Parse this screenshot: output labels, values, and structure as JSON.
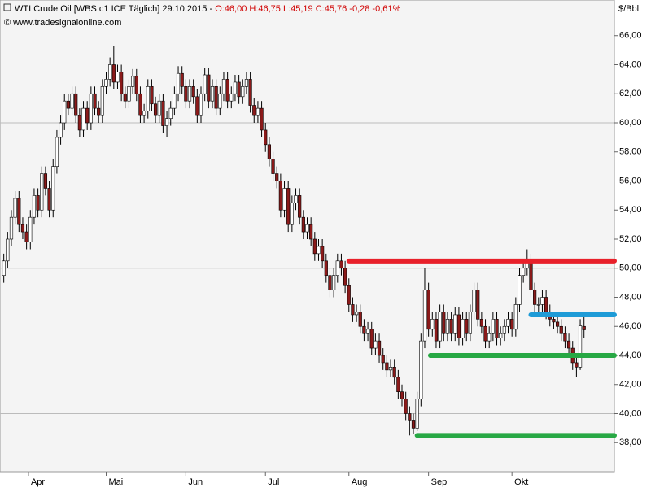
{
  "chart_data": {
    "type": "candlestick",
    "title": "WTI Crude Oil [WBS c1 ICE  Täglich] 29.10.2015 -",
    "title_quote": "O:46,00 H:46,75 L:45,19 C:45,76 -0,28 -0,61%",
    "subtitle": "© www.tradesignalonline.com",
    "y_label": "$/Bbl",
    "up_color": "#ffffff",
    "down_color": "#8b1a1a",
    "xlim": [
      -1,
      161
    ],
    "xticks": [
      {
        "value": 6.5,
        "label": "Apr"
      },
      {
        "value": 27,
        "label": "Mai"
      },
      {
        "value": 48,
        "label": "Jun"
      },
      {
        "value": 69,
        "label": "Jul"
      },
      {
        "value": 91,
        "label": "Aug"
      },
      {
        "value": 112,
        "label": "Sep"
      },
      {
        "value": 134,
        "label": "Okt"
      }
    ],
    "ylim": [
      36,
      68
    ],
    "yticks": [
      {
        "value": 38,
        "label": "38,00"
      },
      {
        "value": 40,
        "label": "40,00"
      },
      {
        "value": 42,
        "label": "42,00"
      },
      {
        "value": 44,
        "label": "44,00"
      },
      {
        "value": 46,
        "label": "46,00"
      },
      {
        "value": 48,
        "label": "48,00"
      },
      {
        "value": 50,
        "label": "50,00"
      },
      {
        "value": 52,
        "label": "52,00"
      },
      {
        "value": 54,
        "label": "54,00"
      },
      {
        "value": 56,
        "label": "56,00"
      },
      {
        "value": 58,
        "label": "58,00"
      },
      {
        "value": 60,
        "label": "60,00"
      },
      {
        "value": 62,
        "label": "62,00"
      },
      {
        "value": 64,
        "label": "64,00"
      },
      {
        "value": 66,
        "label": "66,00"
      }
    ],
    "grid": [
      40,
      50,
      60
    ],
    "levels": [
      {
        "value": 50.5,
        "from": 91,
        "to": 161,
        "color": "#e8202a"
      },
      {
        "value": 46.8,
        "from": 139,
        "to": 161,
        "color": "#1e9bd7"
      },
      {
        "value": 44,
        "from": 112.5,
        "to": 161,
        "color": "#27a844"
      },
      {
        "value": 38.5,
        "from": 109,
        "to": 161,
        "color": "#27a844"
      }
    ],
    "open": [
      49.5,
      50.5,
      52,
      53.5,
      54.8,
      53,
      52.5,
      51.8,
      53.5,
      55,
      54,
      56.5,
      55.5,
      54,
      57,
      59,
      60,
      61.5,
      61,
      62,
      60.5,
      59.5,
      61,
      60,
      62,
      61,
      60.5,
      62.5,
      63,
      64,
      62.8,
      63.5,
      62,
      61.5,
      62.5,
      63.2,
      62,
      60.5,
      60.8,
      62.5,
      61.3,
      60.5,
      61.5,
      59.8,
      60.3,
      61,
      62,
      63.4,
      62.5,
      61.5,
      62.5,
      61.8,
      60.5,
      62,
      63.3,
      61.5,
      62.5,
      61,
      62,
      63,
      61.5,
      62,
      62.8,
      61.8,
      62.5,
      63,
      61.2,
      60.5,
      61,
      59.5,
      58.5,
      57.5,
      56.5,
      56,
      54,
      55.5,
      53,
      54.5,
      55,
      53.5,
      52.5,
      53,
      52,
      51,
      51.5,
      50.5,
      49.5,
      48.5,
      49.5,
      50.5,
      50,
      48.8,
      47.5,
      46.8,
      47,
      46,
      45.5,
      45.8,
      44.5,
      45,
      44,
      43.5,
      43,
      43.2,
      42.5,
      41.5,
      41,
      40,
      39.5,
      39,
      41,
      45,
      48.5,
      45.8,
      46.5,
      45,
      47,
      45.5,
      46.5,
      45.5,
      46.8,
      45.2,
      46.5,
      45.5,
      47,
      48.5,
      46.5,
      46,
      45,
      45.5,
      46.5,
      45.2,
      45.5,
      46,
      46.5,
      45.8,
      47.5,
      49.5,
      50,
      50.5,
      48.5,
      47.5,
      47.5,
      48,
      47,
      46.5,
      46.3,
      46,
      45.5,
      45,
      44.5,
      43.5,
      43.2,
      46.0
    ],
    "high": [
      51,
      52.5,
      54,
      55.3,
      55.3,
      53.5,
      53,
      54,
      55.5,
      55.5,
      57,
      57,
      56,
      57.5,
      59.5,
      60.5,
      62,
      62,
      62.5,
      62.5,
      61,
      61.5,
      61.5,
      62.5,
      62.5,
      61.5,
      63,
      63.5,
      64.5,
      65.3,
      64,
      64,
      62.5,
      63,
      63.7,
      63.7,
      62.5,
      61.3,
      63,
      63,
      61.8,
      62,
      62,
      60.8,
      61.5,
      62.5,
      63.9,
      63.9,
      63,
      63,
      63,
      62.3,
      62.5,
      63.8,
      63.8,
      63,
      63,
      62.5,
      63.5,
      63.5,
      62.5,
      63.3,
      63.3,
      63,
      63.5,
      63.5,
      61.7,
      61.5,
      61.5,
      60,
      59,
      58,
      57,
      56.5,
      56,
      56,
      55,
      55.5,
      55.5,
      54,
      53.5,
      53.5,
      52.5,
      52,
      52,
      51,
      50,
      50,
      51,
      51,
      50.5,
      49.3,
      48,
      47.5,
      47.5,
      46.5,
      46.3,
      46.3,
      45.5,
      45.5,
      44.5,
      44,
      43.7,
      43.7,
      43,
      42,
      41.5,
      40.5,
      40,
      41.5,
      45.5,
      50,
      49,
      47,
      47,
      47.5,
      47.5,
      47,
      47,
      47.3,
      47.3,
      47,
      47,
      47.5,
      49,
      49,
      47,
      46.5,
      46,
      47,
      47,
      46,
      46.5,
      47,
      47,
      48,
      50,
      50.5,
      51.3,
      51,
      49,
      48,
      48.5,
      48.5,
      47.5,
      47,
      46.8,
      46.5,
      46,
      45.5,
      45,
      44,
      46.5,
      46.75
    ],
    "low": [
      49,
      50,
      51.5,
      53,
      52.5,
      52,
      51.3,
      51.3,
      53,
      53.5,
      53.5,
      55,
      53.5,
      53.5,
      56.5,
      58.5,
      59.5,
      60.5,
      60.5,
      60,
      59,
      59,
      59.5,
      59.5,
      60.5,
      60,
      60,
      62,
      62.5,
      62.3,
      62.3,
      61.5,
      61,
      61,
      62,
      61.5,
      60,
      60,
      60.3,
      60.8,
      60,
      60,
      59.3,
      59,
      59.8,
      60.5,
      61.5,
      62,
      61,
      61,
      61.3,
      60,
      60,
      61.5,
      61,
      61,
      60.5,
      60.5,
      61.5,
      61,
      61,
      61.5,
      61.3,
      61.3,
      62,
      60.7,
      60,
      60,
      59,
      58,
      57,
      56,
      55.5,
      53.5,
      53.5,
      52.5,
      52.5,
      54,
      53,
      52,
      52,
      51.5,
      50.5,
      50.5,
      50,
      49,
      48,
      48,
      49,
      49.5,
      48.3,
      47,
      46.3,
      46.3,
      45.5,
      45,
      45,
      44,
      44,
      43.5,
      43,
      42.5,
      42.5,
      42,
      41,
      40.5,
      39.5,
      38.5,
      38.6,
      38.8,
      40.5,
      44.5,
      45.3,
      45.3,
      44.5,
      44.5,
      45,
      45,
      45,
      45,
      44.7,
      44.7,
      45,
      45,
      46.5,
      46,
      45.5,
      44.5,
      44.5,
      45,
      44.7,
      44.7,
      45,
      45.5,
      45.3,
      45.3,
      47,
      49,
      49.5,
      48,
      47,
      47,
      47,
      46.5,
      46,
      45.8,
      45.5,
      45,
      44.5,
      44,
      43,
      42.5,
      43,
      45.19
    ],
    "close": [
      50.5,
      52,
      53.5,
      54.8,
      53,
      52.5,
      51.8,
      53.5,
      55,
      54,
      56.5,
      55.5,
      54,
      57,
      59,
      60,
      61.5,
      61,
      62,
      60.5,
      59.5,
      61,
      60,
      62,
      61,
      60.5,
      62.5,
      63,
      64,
      62.8,
      63.5,
      62,
      61.5,
      62.5,
      63.2,
      62,
      60.5,
      60.8,
      62.5,
      61.3,
      60.5,
      61.5,
      59.8,
      60.3,
      61,
      62,
      63.4,
      62.5,
      61.5,
      62.5,
      61.8,
      60.5,
      62,
      63.3,
      61.5,
      62.5,
      61,
      62,
      63,
      61.5,
      62,
      62.8,
      61.8,
      62.5,
      63,
      61.2,
      60.5,
      61,
      59.5,
      58.5,
      57.5,
      56.5,
      56,
      54,
      55.5,
      53,
      54.5,
      55,
      53.5,
      52.5,
      53,
      52,
      51,
      51.5,
      50.5,
      49.5,
      48.5,
      49.5,
      50.5,
      50,
      48.8,
      47.5,
      46.8,
      47,
      46,
      45.5,
      45.8,
      44.5,
      45,
      44,
      43.5,
      43,
      43.2,
      42.5,
      41.5,
      41,
      40,
      39.5,
      39,
      41,
      45,
      48.5,
      45.8,
      46.5,
      45,
      47,
      45.5,
      46.5,
      45.5,
      46.8,
      45.2,
      46.5,
      45.5,
      47,
      48.5,
      46.5,
      46,
      45,
      45.5,
      46.5,
      45.2,
      45.5,
      46,
      46.5,
      45.8,
      47.5,
      49.5,
      50,
      50.5,
      48.5,
      47.5,
      47.5,
      48,
      47,
      46.5,
      46.3,
      46,
      45.5,
      45,
      44.5,
      43.5,
      43.2,
      46.04,
      45.76
    ]
  }
}
